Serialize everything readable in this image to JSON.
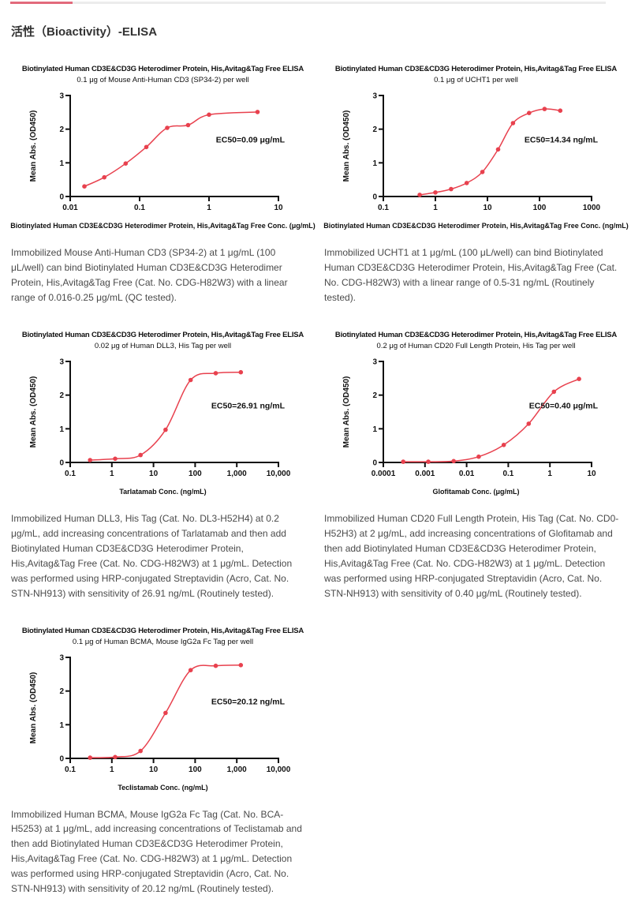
{
  "page": {
    "section_title": "活性（Bioactivity）-ELISA"
  },
  "style": {
    "curve_color": "#e8414e",
    "point_color": "#e8414e",
    "axis_color": "#111111",
    "accent_bar_color": "#e26a7c",
    "track_color": "#ececec"
  },
  "chart_data": [
    {
      "type": "scatter",
      "title": "Biotinylated Human CD3E&CD3G Heterodimer Protein, His,Avitag&Tag Free ELISA",
      "subtitle": "0.1 μg of Mouse Anti-Human CD3 (SP34-2) per well",
      "xlabel": "Biotinylated Human CD3E&CD3G Heterodimer Protein, His,Avitag&Tag Free Conc. (μg/mL)",
      "ylabel": "Mean Abs. (OD450)",
      "annotation": "EC50=0.09 μg/mL",
      "xscale": "log",
      "xlim": [
        0.01,
        10
      ],
      "ylim": [
        0,
        3
      ],
      "xticks": [
        {
          "v": 0.01,
          "label": "0.01"
        },
        {
          "v": 0.1,
          "label": "0.1"
        },
        {
          "v": 1,
          "label": "1"
        },
        {
          "v": 10,
          "label": "10"
        }
      ],
      "yticks": [
        0,
        1,
        2,
        3
      ],
      "x": [
        0.016,
        0.031,
        0.063,
        0.125,
        0.25,
        0.5,
        1,
        5
      ],
      "y": [
        0.3,
        0.57,
        0.98,
        1.47,
        2.04,
        2.12,
        2.43,
        2.51
      ],
      "description": "Immobilized Mouse Anti-Human CD3 (SP34-2) at 1 μg/mL (100 μL/well) can bind Biotinylated Human CD3E&CD3G Heterodimer Protein, His,Avitag&Tag Free (Cat. No. CDG-H82W3) with a linear range of 0.016-0.25 μg/mL (QC tested)."
    },
    {
      "type": "scatter",
      "title": "Biotinylated Human CD3E&CD3G Heterodimer Protein, His,Avitag&Tag Free ELISA",
      "subtitle": "0.1 μg of UCHT1 per well",
      "xlabel": "Biotinylated Human CD3E&CD3G Heterodimer Protein, His,Avitag&Tag Free Conc. (ng/mL)",
      "ylabel": "Mean Abs. (OD450)",
      "annotation": "EC50=14.34 ng/mL",
      "xscale": "log",
      "xlim": [
        0.1,
        1000
      ],
      "ylim": [
        0,
        3
      ],
      "xticks": [
        {
          "v": 0.1,
          "label": "0.1"
        },
        {
          "v": 1,
          "label": "1"
        },
        {
          "v": 10,
          "label": "10"
        },
        {
          "v": 100,
          "label": "100"
        },
        {
          "v": 1000,
          "label": "1000"
        }
      ],
      "yticks": [
        0,
        1,
        2,
        3
      ],
      "x": [
        0.5,
        1,
        2,
        4,
        8,
        16,
        31,
        63,
        125,
        250
      ],
      "y": [
        0.05,
        0.12,
        0.22,
        0.4,
        0.73,
        1.4,
        2.18,
        2.48,
        2.6,
        2.55
      ],
      "description": "Immobilized UCHT1 at 1 μg/mL (100 μL/well) can bind Biotinylated Human CD3E&CD3G Heterodimer Protein, His,Avitag&Tag Free (Cat. No. CDG-H82W3) with a linear range of 0.5-31 ng/mL (Routinely tested)."
    },
    {
      "type": "scatter",
      "title": "Biotinylated Human CD3E&CD3G Heterodimer Protein, His,Avitag&Tag Free ELISA",
      "subtitle": "0.02 μg of Human DLL3, His Tag per well",
      "xlabel": "Tarlatamab Conc. (ng/mL)",
      "ylabel": "Mean Abs. (OD450)",
      "annotation": "EC50=26.91 ng/mL",
      "xscale": "log",
      "xlim": [
        0.1,
        10000
      ],
      "ylim": [
        0,
        3
      ],
      "xticks": [
        {
          "v": 0.1,
          "label": "0.1"
        },
        {
          "v": 1,
          "label": "1"
        },
        {
          "v": 10,
          "label": "10"
        },
        {
          "v": 100,
          "label": "100"
        },
        {
          "v": 1000,
          "label": "1,000"
        },
        {
          "v": 10000,
          "label": "10,000"
        }
      ],
      "yticks": [
        0,
        1,
        2,
        3
      ],
      "x": [
        0.3,
        1.2,
        4.9,
        19.5,
        78,
        312,
        1250
      ],
      "y": [
        0.07,
        0.11,
        0.22,
        0.97,
        2.45,
        2.65,
        2.68
      ],
      "description": "Immobilized Human DLL3, His Tag (Cat. No. DL3-H52H4) at 0.2 μg/mL, add increasing concentrations of Tarlatamab and then add Biotinylated Human CD3E&CD3G Heterodimer Protein, His,Avitag&Tag Free (Cat. No. CDG-H82W3) at 1 μg/mL. Detection was performed using HRP-conjugated Streptavidin (Acro, Cat. No. STN-NH913) with sensitivity of 26.91 ng/mL (Routinely tested)."
    },
    {
      "type": "scatter",
      "title": "Biotinylated Human CD3E&CD3G Heterodimer Protein, His,Avitag&Tag Free ELISA",
      "subtitle": "0.2 μg of Human CD20 Full Length Protein, His Tag per well",
      "xlabel": "Glofitamab Conc. (μg/mL)",
      "ylabel": "Mean Abs. (OD450)",
      "annotation": "EC50=0.40 μg/mL",
      "xscale": "log",
      "xlim": [
        0.0001,
        10
      ],
      "ylim": [
        0,
        3
      ],
      "xticks": [
        {
          "v": 0.0001,
          "label": "0.0001"
        },
        {
          "v": 0.001,
          "label": "0.001"
        },
        {
          "v": 0.01,
          "label": "0.01"
        },
        {
          "v": 0.1,
          "label": "0.1"
        },
        {
          "v": 1,
          "label": "1"
        },
        {
          "v": 10,
          "label": "10"
        }
      ],
      "yticks": [
        0,
        1,
        2,
        3
      ],
      "x": [
        0.0003,
        0.0012,
        0.0049,
        0.0195,
        0.078,
        0.31,
        1.25,
        5
      ],
      "y": [
        0.02,
        0.02,
        0.04,
        0.17,
        0.52,
        1.15,
        2.1,
        2.48
      ],
      "description": "Immobilized Human CD20 Full Length Protein, His Tag (Cat. No. CD0-H52H3) at 2 μg/mL, add increasing concentrations of Glofitamab and then add Biotinylated Human CD3E&CD3G Heterodimer Protein, His,Avitag&Tag Free (Cat. No. CDG-H82W3) at 1 μg/mL. Detection was performed using HRP-conjugated Streptavidin (Acro, Cat. No. STN-NH913) with sensitivity of 0.40 μg/mL (Routinely tested)."
    },
    {
      "type": "scatter",
      "title": "Biotinylated Human CD3E&CD3G Heterodimer Protein, His,Avitag&Tag Free ELISA",
      "subtitle": "0.1 μg of Human BCMA, Mouse IgG2a Fc Tag per well",
      "xlabel": "Teclistamab Conc. (ng/mL)",
      "ylabel": "Mean Abs. (OD450)",
      "annotation": "EC50=20.12 ng/mL",
      "xscale": "log",
      "xlim": [
        0.1,
        10000
      ],
      "ylim": [
        0,
        3
      ],
      "xticks": [
        {
          "v": 0.1,
          "label": "0.1"
        },
        {
          "v": 1,
          "label": "1"
        },
        {
          "v": 10,
          "label": "10"
        },
        {
          "v": 100,
          "label": "100"
        },
        {
          "v": 1000,
          "label": "1,000"
        },
        {
          "v": 10000,
          "label": "10,000"
        }
      ],
      "yticks": [
        0,
        1,
        2,
        3
      ],
      "x": [
        0.3,
        1.2,
        4.9,
        19.5,
        78,
        312,
        1250
      ],
      "y": [
        0.02,
        0.04,
        0.22,
        1.35,
        2.62,
        2.75,
        2.77
      ],
      "description": "Immobilized Human BCMA, Mouse IgG2a Fc Tag (Cat. No. BCA-H5253) at 1 μg/mL, add increasing concentrations of Teclistamab and then add Biotinylated Human CD3E&CD3G Heterodimer Protein, His,Avitag&Tag Free (Cat. No. CDG-H82W3) at 1 μg/mL. Detection was performed using HRP-conjugated Streptavidin (Acro, Cat. No. STN-NH913) with sensitivity of 20.12 ng/mL (Routinely tested)."
    }
  ]
}
